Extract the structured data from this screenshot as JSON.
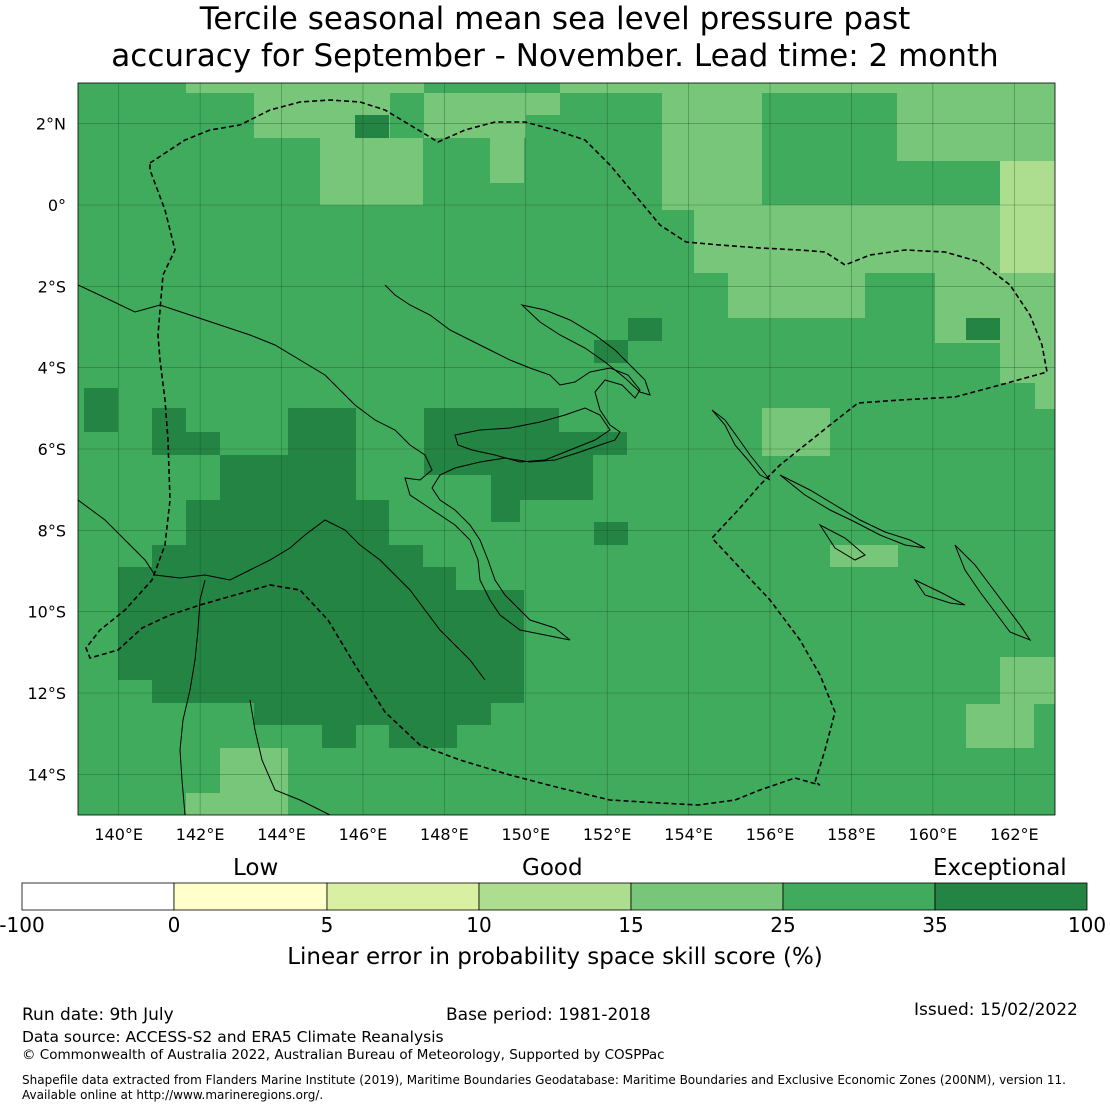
{
  "title": {
    "line1": "Tercile seasonal mean sea level pressure past",
    "line2": "accuracy for September - November. Lead time: 2 month"
  },
  "map": {
    "lon_range": [
      139.0,
      163.0
    ],
    "lat_range": [
      -15.0,
      3.0
    ],
    "lon_ticks": [
      "140°E",
      "142°E",
      "144°E",
      "146°E",
      "148°E",
      "150°E",
      "152°E",
      "154°E",
      "156°E",
      "158°E",
      "160°E",
      "162°E"
    ],
    "lat_ticks": [
      "2°N",
      "0°",
      "2°S",
      "4°S",
      "6°S",
      "8°S",
      "10°S",
      "12°S",
      "14°S"
    ],
    "grid": true,
    "boundary_line": "dashed",
    "base_color": "#41ab5d",
    "category_colors": {
      "15-25": "#78c679",
      "10-15": "#addd8e",
      "25-35": "#41ab5d",
      "35-100": "#238443"
    }
  },
  "colorbar": {
    "words": [
      "Low",
      "Good",
      "Exceptional"
    ],
    "ticks": [
      "-100",
      "0",
      "5",
      "10",
      "15",
      "25",
      "35",
      "100"
    ],
    "colors": [
      "#ffffff",
      "#ffffcc",
      "#d9f0a3",
      "#addd8e",
      "#78c679",
      "#41ab5d",
      "#238443"
    ],
    "label": "Linear error in probability space skill score (%)"
  },
  "footer": {
    "run_date": "Run date: 9th July",
    "base_period": "Base period: 1981-2018",
    "issued": "Issued: 15/02/2022",
    "data_source": "Data source: ACCESS-S2 and ERA5 Climate Reanalysis",
    "copyright": "© Commonwealth of Australia 2022, Australian Bureau of Meteorology, Supported by COSPPac",
    "shapefile_line1": "Shapefile data extracted from Flanders Marine Institute (2019), Maritime Boundaries Geodatabase: Maritime Boundaries and Exclusive Economic Zones (200NM), version 11.",
    "shapefile_line2": "Available online at http://www.marineregions.org/."
  }
}
